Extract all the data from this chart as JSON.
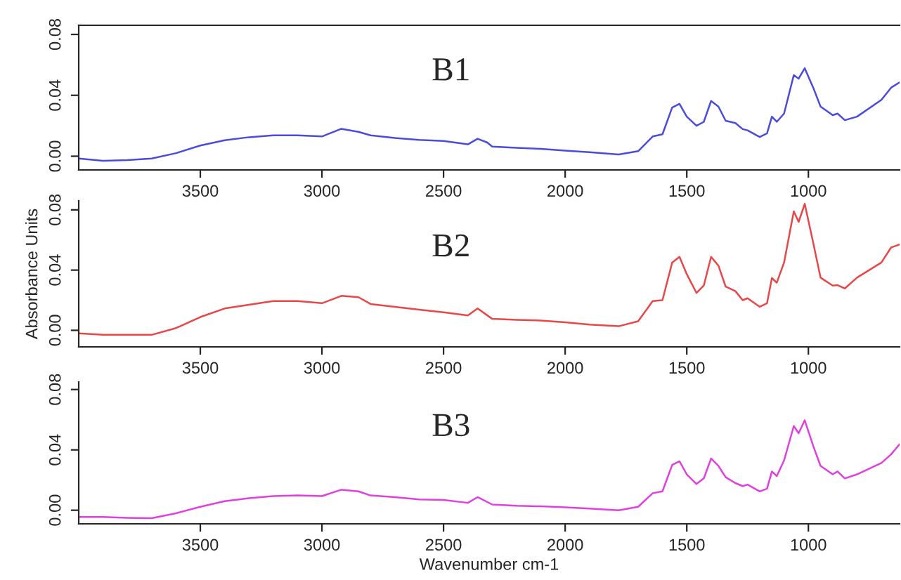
{
  "chart_data": [
    {
      "type": "line",
      "annotations": [
        "B1"
      ],
      "xlim": [
        4000,
        625
      ],
      "ylim": [
        -0.009,
        0.086
      ],
      "xticks": [
        3500,
        3000,
        2500,
        2000,
        1500,
        1000
      ],
      "yticks": [
        {
          "value": 0,
          "label": "0.00"
        },
        {
          "value": 0.04,
          "label": "0.04"
        },
        {
          "value": 0.08,
          "label": "0.08"
        }
      ],
      "x": [
        4000,
        3900,
        3800,
        3700,
        3600,
        3500,
        3400,
        3300,
        3200,
        3100,
        3000,
        2920,
        2850,
        2800,
        2700,
        2600,
        2500,
        2400,
        2360,
        2320,
        2300,
        2200,
        2100,
        2000,
        1900,
        1780,
        1700,
        1640,
        1600,
        1560,
        1530,
        1500,
        1460,
        1430,
        1400,
        1370,
        1340,
        1300,
        1270,
        1250,
        1200,
        1170,
        1150,
        1130,
        1100,
        1060,
        1040,
        1015,
        980,
        950,
        900,
        880,
        850,
        800,
        700,
        660,
        625
      ],
      "series": [
        {
          "color": "#4b4bdc",
          "values": [
            -0.0015,
            -0.003,
            -0.0025,
            -0.0015,
            0.002,
            0.007,
            0.0105,
            0.0125,
            0.0137,
            0.0137,
            0.013,
            0.018,
            0.016,
            0.0137,
            0.012,
            0.0107,
            0.01,
            0.0078,
            0.0115,
            0.009,
            0.0063,
            0.0055,
            0.0048,
            0.0037,
            0.0026,
            0.0011,
            0.0033,
            0.013,
            0.0144,
            0.032,
            0.0344,
            0.026,
            0.02,
            0.0226,
            0.0363,
            0.0326,
            0.0233,
            0.0218,
            0.0178,
            0.017,
            0.0126,
            0.015,
            0.026,
            0.0226,
            0.028,
            0.0533,
            0.051,
            0.0578,
            0.045,
            0.0326,
            0.027,
            0.028,
            0.0237,
            0.026,
            0.037,
            0.045,
            0.0485
          ]
        }
      ]
    },
    {
      "type": "line",
      "annotations": [
        "B2"
      ],
      "ylabel": "Absorbance Units",
      "xlim": [
        4000,
        625
      ],
      "ylim": [
        -0.011,
        0.086
      ],
      "xticks": [
        3500,
        3000,
        2500,
        2000,
        1500,
        1000
      ],
      "yticks": [
        {
          "value": 0,
          "label": "0.00"
        },
        {
          "value": 0.04,
          "label": "0.04"
        },
        {
          "value": 0.08,
          "label": "0.08"
        }
      ],
      "x": [
        4000,
        3900,
        3800,
        3700,
        3600,
        3500,
        3400,
        3300,
        3200,
        3100,
        3000,
        2920,
        2850,
        2800,
        2700,
        2600,
        2500,
        2400,
        2360,
        2300,
        2200,
        2100,
        2000,
        1900,
        1780,
        1700,
        1640,
        1600,
        1560,
        1530,
        1500,
        1460,
        1430,
        1400,
        1370,
        1340,
        1300,
        1270,
        1250,
        1200,
        1170,
        1150,
        1130,
        1100,
        1060,
        1040,
        1015,
        980,
        950,
        900,
        880,
        850,
        800,
        700,
        660,
        625
      ],
      "series": [
        {
          "color": "#e8474a",
          "values": [
            -0.002,
            -0.003,
            -0.003,
            -0.003,
            0.0015,
            0.0088,
            0.0145,
            0.017,
            0.0194,
            0.0194,
            0.018,
            0.0229,
            0.022,
            0.0175,
            0.0156,
            0.0137,
            0.012,
            0.0099,
            0.0145,
            0.0076,
            0.0069,
            0.0065,
            0.0053,
            0.0038,
            0.0027,
            0.006,
            0.0194,
            0.02,
            0.045,
            0.0488,
            0.0373,
            0.0248,
            0.0297,
            0.0488,
            0.043,
            0.029,
            0.026,
            0.02,
            0.0213,
            0.0156,
            0.018,
            0.0347,
            0.0316,
            0.045,
            0.079,
            0.072,
            0.084,
            0.058,
            0.035,
            0.0297,
            0.03,
            0.0278,
            0.035,
            0.045,
            0.055,
            0.057
          ]
        }
      ]
    },
    {
      "type": "line",
      "annotations": [
        "B3"
      ],
      "xlabel": "Wavenumber cm-1",
      "xlim": [
        4000,
        625
      ],
      "ylim": [
        -0.009,
        0.085
      ],
      "xticks": [
        3500,
        3000,
        2500,
        2000,
        1500,
        1000
      ],
      "yticks": [
        {
          "value": 0,
          "label": "0.00"
        },
        {
          "value": 0.04,
          "label": "0.04"
        },
        {
          "value": 0.08,
          "label": "0.08"
        }
      ],
      "x": [
        4000,
        3900,
        3800,
        3700,
        3600,
        3500,
        3400,
        3300,
        3200,
        3100,
        3000,
        2920,
        2850,
        2800,
        2700,
        2600,
        2500,
        2400,
        2360,
        2300,
        2200,
        2100,
        2000,
        1900,
        1780,
        1700,
        1640,
        1600,
        1560,
        1530,
        1500,
        1460,
        1430,
        1400,
        1370,
        1340,
        1300,
        1270,
        1250,
        1200,
        1170,
        1150,
        1130,
        1100,
        1060,
        1040,
        1015,
        980,
        950,
        900,
        880,
        850,
        800,
        700,
        660,
        625
      ],
      "series": [
        {
          "color": "#e040e0",
          "values": [
            -0.0045,
            -0.0045,
            -0.005,
            -0.0053,
            -0.002,
            0.0023,
            0.006,
            0.008,
            0.0094,
            0.0098,
            0.0094,
            0.0136,
            0.0125,
            0.0098,
            0.0087,
            0.0072,
            0.0068,
            0.0049,
            0.0087,
            0.0038,
            0.003,
            0.0026,
            0.0019,
            0.0011,
            0.0,
            0.0023,
            0.0113,
            0.0125,
            0.03,
            0.0325,
            0.0238,
            0.0174,
            0.0211,
            0.0343,
            0.0294,
            0.0219,
            0.018,
            0.016,
            0.017,
            0.0125,
            0.0143,
            0.0257,
            0.0226,
            0.033,
            0.0558,
            0.051,
            0.0596,
            0.0426,
            0.0294,
            0.0238,
            0.0257,
            0.0211,
            0.0238,
            0.0313,
            0.037,
            0.0438
          ]
        }
      ]
    }
  ]
}
